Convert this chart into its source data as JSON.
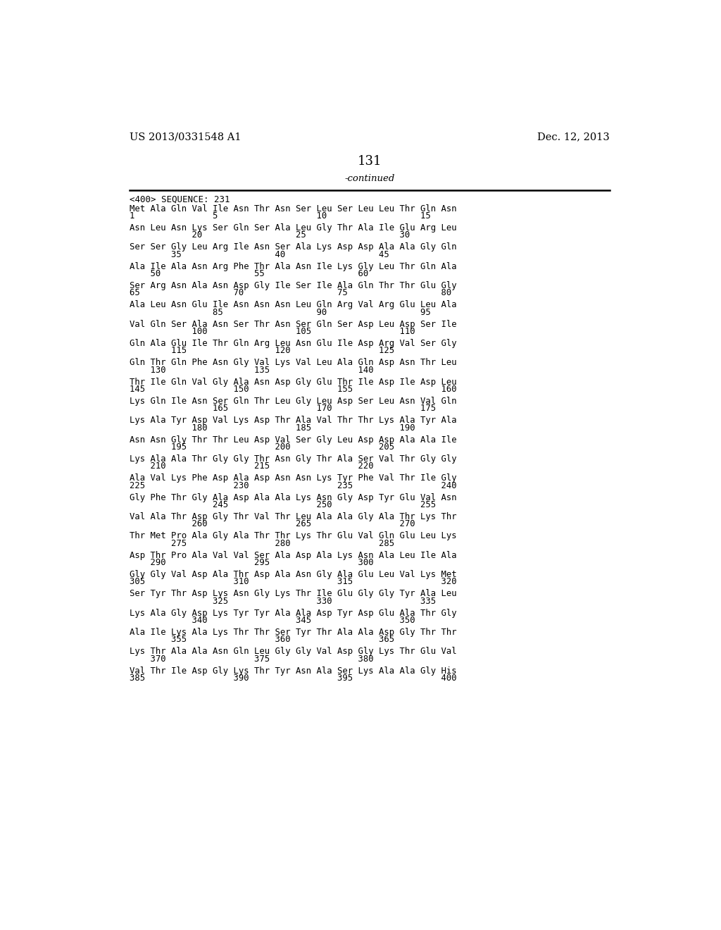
{
  "header_left": "US 2013/0331548 A1",
  "header_right": "Dec. 12, 2013",
  "page_number": "131",
  "continued_label": "-continued",
  "sequence_label": "<400> SEQUENCE: 231",
  "background_color": "#ffffff",
  "text_color": "#000000",
  "seq_blocks": [
    [
      "Met Ala Gln Val Ile Asn Thr Asn Ser Leu Ser Leu Leu Thr Gln Asn",
      "1               5                   10                  15"
    ],
    [
      "Asn Leu Asn Lys Ser Gln Ser Ala Leu Gly Thr Ala Ile Glu Arg Leu",
      "            20                  25                  30"
    ],
    [
      "Ser Ser Gly Leu Arg Ile Asn Ser Ala Lys Asp Asp Ala Ala Gly Gln",
      "        35                  40                  45"
    ],
    [
      "Ala Ile Ala Asn Arg Phe Thr Ala Asn Ile Lys Gly Leu Thr Gln Ala",
      "    50                  55                  60"
    ],
    [
      "Ser Arg Asn Ala Asn Asp Gly Ile Ser Ile Ala Gln Thr Thr Glu Gly",
      "65                  70                  75                  80"
    ],
    [
      "Ala Leu Asn Glu Ile Asn Asn Asn Leu Gln Arg Val Arg Glu Leu Ala",
      "                85                  90                  95"
    ],
    [
      "Val Gln Ser Ala Asn Ser Thr Asn Ser Gln Ser Asp Leu Asp Ser Ile",
      "            100                 105                 110"
    ],
    [
      "Gln Ala Glu Ile Thr Gln Arg Leu Asn Glu Ile Asp Arg Val Ser Gly",
      "        115                 120                 125"
    ],
    [
      "Gln Thr Gln Phe Asn Gly Val Lys Val Leu Ala Gln Asp Asn Thr Leu",
      "    130                 135                 140"
    ],
    [
      "Thr Ile Gln Val Gly Ala Asn Asp Gly Glu Thr Ile Asp Ile Asp Leu",
      "145                 150                 155                 160"
    ],
    [
      "Lys Gln Ile Asn Ser Gln Thr Leu Gly Leu Asp Ser Leu Asn Val Gln",
      "                165                 170                 175"
    ],
    [
      "Lys Ala Tyr Asp Val Lys Asp Thr Ala Val Thr Thr Lys Ala Tyr Ala",
      "            180                 185                 190"
    ],
    [
      "Asn Asn Gly Thr Thr Leu Asp Val Ser Gly Leu Asp Asp Ala Ala Ile",
      "        195                 200                 205"
    ],
    [
      "Lys Ala Ala Thr Gly Gly Thr Asn Gly Thr Ala Ser Val Thr Gly Gly",
      "    210                 215                 220"
    ],
    [
      "Ala Val Lys Phe Asp Ala Asp Asn Asn Lys Tyr Phe Val Thr Ile Gly",
      "225                 230                 235                 240"
    ],
    [
      "Gly Phe Thr Gly Ala Asp Ala Ala Lys Asn Gly Asp Tyr Glu Val Asn",
      "                245                 250                 255"
    ],
    [
      "Val Ala Thr Asp Gly Thr Val Thr Leu Ala Ala Gly Ala Thr Lys Thr",
      "            260                 265                 270"
    ],
    [
      "Thr Met Pro Ala Gly Ala Thr Thr Lys Thr Glu Val Gln Glu Leu Lys",
      "        275                 280                 285"
    ],
    [
      "Asp Thr Pro Ala Val Val Ser Ala Asp Ala Lys Asn Ala Leu Ile Ala",
      "    290                 295                 300"
    ],
    [
      "Gly Gly Val Asp Ala Thr Asp Ala Asn Gly Ala Glu Leu Val Lys Met",
      "305                 310                 315                 320"
    ],
    [
      "Ser Tyr Thr Asp Lys Asn Gly Lys Thr Ile Glu Gly Gly Tyr Ala Leu",
      "                325                 330                 335"
    ],
    [
      "Lys Ala Gly Asp Lys Tyr Tyr Ala Ala Asp Tyr Asp Glu Ala Thr Gly",
      "            340                 345                 350"
    ],
    [
      "Ala Ile Lys Ala Lys Thr Thr Ser Tyr Thr Ala Ala Asp Gly Thr Thr",
      "        355                 360                 365"
    ],
    [
      "Lys Thr Ala Ala Asn Gln Leu Gly Gly Val Asp Gly Lys Thr Glu Val",
      "    370                 375                 380"
    ],
    [
      "Val Thr Ile Asp Gly Lys Thr Tyr Asn Ala Ser Lys Ala Ala Gly His",
      "385                 390                 395                 400"
    ]
  ]
}
